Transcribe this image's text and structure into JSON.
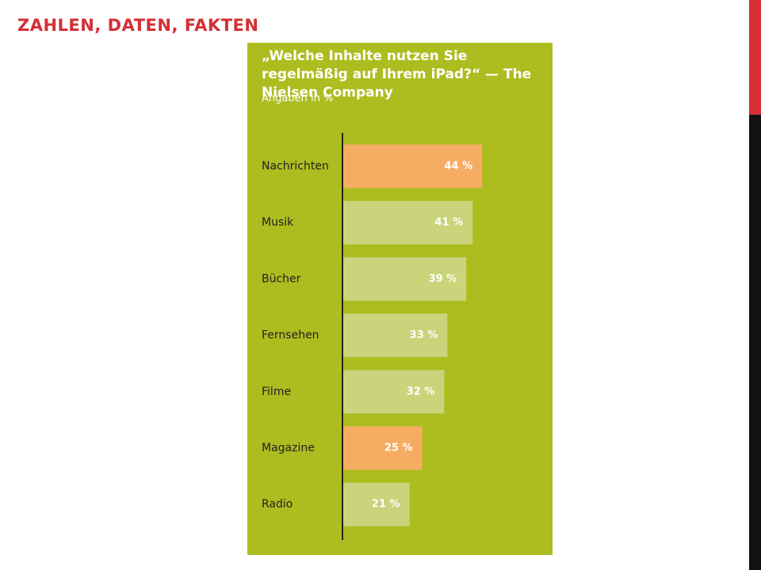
{
  "slide_title": "ZAHLEN, DATEN, FAKTEN",
  "chart_data": {
    "type": "hbar",
    "title": "„Welche Inhalte nutzen Sie regelmäßig auf Ihrem iPad?“ — The Nielsen Company",
    "subtitle": "Angaben in %",
    "categories": [
      "Nachrichten",
      "Musik",
      "Bücher",
      "Fernsehen",
      "Filme",
      "Magazine",
      "Radio"
    ],
    "values": [
      44,
      41,
      39,
      33,
      32,
      25,
      21
    ],
    "value_labels": [
      "44 %",
      "41 %",
      "39 %",
      "33 %",
      "32 %",
      "25 %",
      "21 %"
    ],
    "colors": [
      "#f6ad63",
      "#c9d47b",
      "#c9d47b",
      "#c9d47b",
      "#c9d47b",
      "#f6ad63",
      "#c9d47b"
    ]
  }
}
